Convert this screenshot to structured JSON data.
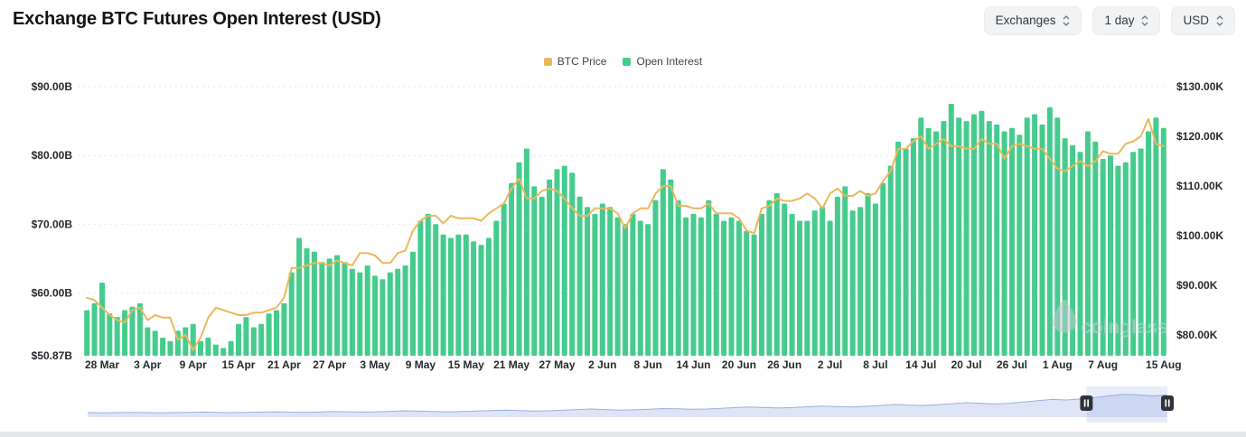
{
  "header": {
    "title": "Exchange BTC Futures Open Interest (USD)",
    "controls": [
      {
        "label": "Exchanges"
      },
      {
        "label": "1 day"
      },
      {
        "label": "USD"
      }
    ]
  },
  "legend": [
    {
      "label": "BTC Price",
      "color": "#eab85c"
    },
    {
      "label": "Open Interest",
      "color": "#45cc8d"
    }
  ],
  "watermark": "coinglass",
  "chart_data": {
    "type": "bar",
    "title": "Exchange BTC Futures Open Interest (USD)",
    "grid": "dotted horizontal",
    "legend_position": "top-center",
    "x": [
      "26 Mar",
      "27 Mar",
      "28 Mar",
      "29 Mar",
      "30 Mar",
      "31 Mar",
      "1 Apr",
      "2 Apr",
      "3 Apr",
      "4 Apr",
      "5 Apr",
      "6 Apr",
      "7 Apr",
      "8 Apr",
      "9 Apr",
      "10 Apr",
      "11 Apr",
      "12 Apr",
      "13 Apr",
      "14 Apr",
      "15 Apr",
      "16 Apr",
      "17 Apr",
      "18 Apr",
      "19 Apr",
      "20 Apr",
      "21 Apr",
      "22 Apr",
      "23 Apr",
      "24 Apr",
      "25 Apr",
      "26 Apr",
      "27 Apr",
      "28 Apr",
      "29 Apr",
      "30 Apr",
      "1 May",
      "2 May",
      "3 May",
      "4 May",
      "5 May",
      "6 May",
      "7 May",
      "8 May",
      "9 May",
      "10 May",
      "11 May",
      "12 May",
      "13 May",
      "14 May",
      "15 May",
      "16 May",
      "17 May",
      "18 May",
      "19 May",
      "20 May",
      "21 May",
      "22 May",
      "23 May",
      "24 May",
      "25 May",
      "26 May",
      "27 May",
      "28 May",
      "29 May",
      "30 May",
      "31 May",
      "1 Jun",
      "2 Jun",
      "3 Jun",
      "4 Jun",
      "5 Jun",
      "6 Jun",
      "7 Jun",
      "8 Jun",
      "9 Jun",
      "10 Jun",
      "11 Jun",
      "12 Jun",
      "13 Jun",
      "14 Jun",
      "15 Jun",
      "16 Jun",
      "17 Jun",
      "18 Jun",
      "19 Jun",
      "20 Jun",
      "21 Jun",
      "22 Jun",
      "23 Jun",
      "24 Jun",
      "25 Jun",
      "26 Jun",
      "27 Jun",
      "28 Jun",
      "29 Jun",
      "30 Jun",
      "1 Jul",
      "2 Jul",
      "3 Jul",
      "4 Jul",
      "5 Jul",
      "6 Jul",
      "7 Jul",
      "8 Jul",
      "9 Jul",
      "10 Jul",
      "11 Jul",
      "12 Jul",
      "13 Jul",
      "14 Jul",
      "15 Jul",
      "16 Jul",
      "17 Jul",
      "18 Jul",
      "19 Jul",
      "20 Jul",
      "21 Jul",
      "22 Jul",
      "23 Jul",
      "24 Jul",
      "25 Jul",
      "26 Jul",
      "27 Jul",
      "28 Jul",
      "29 Jul",
      "30 Jul",
      "31 Jul",
      "1 Aug",
      "2 Aug",
      "3 Aug",
      "4 Aug",
      "5 Aug",
      "6 Aug",
      "7 Aug",
      "8 Aug",
      "9 Aug",
      "10 Aug",
      "11 Aug",
      "12 Aug",
      "13 Aug",
      "14 Aug",
      "15 Aug"
    ],
    "series": [
      {
        "name": "Open Interest",
        "type": "bar",
        "axis": "left",
        "unit": "USD billions",
        "color": "#45cc8d",
        "values": [
          57.5,
          58.5,
          61.5,
          57.0,
          56.5,
          57.5,
          58.0,
          58.5,
          55.0,
          54.5,
          53.5,
          53.0,
          54.5,
          55.0,
          55.5,
          53.0,
          53.5,
          52.5,
          52.0,
          53.0,
          55.5,
          56.5,
          55.0,
          55.5,
          57.0,
          57.5,
          58.5,
          63.0,
          68.0,
          66.5,
          66.0,
          64.5,
          65.0,
          65.5,
          64.5,
          63.5,
          63.0,
          64.0,
          62.5,
          62.0,
          63.0,
          63.5,
          64.0,
          66.0,
          70.5,
          71.5,
          70.0,
          68.5,
          68.0,
          68.5,
          68.5,
          67.5,
          67.0,
          68.0,
          70.5,
          73.0,
          76.0,
          79.0,
          81.0,
          75.5,
          74.0,
          76.5,
          78.0,
          78.5,
          77.5,
          74.0,
          72.5,
          71.5,
          73.0,
          72.5,
          71.0,
          70.0,
          71.5,
          70.5,
          70.0,
          73.5,
          78.0,
          76.5,
          73.5,
          71.0,
          71.5,
          71.0,
          73.5,
          71.5,
          70.5,
          71.0,
          70.5,
          69.0,
          68.5,
          71.5,
          73.5,
          74.5,
          73.0,
          71.5,
          70.5,
          70.5,
          72.0,
          72.5,
          70.5,
          74.0,
          75.5,
          72.0,
          72.5,
          74.5,
          73.0,
          76.0,
          78.5,
          82.0,
          81.0,
          82.5,
          85.5,
          84.0,
          83.5,
          85.0,
          87.5,
          85.5,
          85.0,
          86.0,
          86.5,
          85.0,
          84.5,
          83.5,
          84.0,
          83.0,
          85.5,
          86.0,
          84.5,
          87.0,
          85.5,
          82.5,
          81.5,
          80.5,
          83.5,
          82.0,
          79.5,
          80.0,
          78.5,
          79.0,
          80.5,
          81.0,
          83.5,
          85.5,
          84.0
        ]
      },
      {
        "name": "BTC Price",
        "type": "line",
        "axis": "right",
        "unit": "USD thousands",
        "color": "#eab85c",
        "values": [
          87.5,
          87.0,
          85.5,
          84.0,
          83.0,
          82.5,
          85.0,
          85.5,
          83.0,
          84.0,
          83.5,
          83.5,
          79.0,
          80.0,
          77.0,
          79.5,
          83.5,
          85.5,
          85.0,
          84.5,
          84.0,
          84.0,
          84.5,
          84.5,
          85.0,
          85.5,
          87.5,
          93.5,
          93.5,
          94.0,
          94.5,
          94.5,
          94.0,
          95.0,
          94.5,
          94.0,
          96.5,
          96.5,
          96.0,
          94.5,
          94.5,
          96.5,
          97.0,
          101.0,
          103.0,
          104.0,
          104.0,
          102.5,
          104.0,
          103.5,
          103.5,
          103.5,
          103.0,
          104.5,
          105.5,
          106.5,
          109.5,
          111.5,
          107.5,
          107.5,
          109.0,
          109.5,
          109.0,
          107.5,
          105.5,
          104.0,
          104.0,
          105.5,
          105.5,
          105.5,
          104.5,
          101.5,
          104.5,
          105.5,
          105.5,
          108.5,
          110.0,
          110.0,
          106.0,
          106.0,
          105.5,
          105.5,
          106.5,
          104.5,
          104.5,
          104.5,
          103.5,
          101.0,
          100.5,
          105.5,
          106.0,
          107.5,
          107.0,
          107.0,
          107.5,
          108.5,
          107.5,
          105.5,
          108.5,
          109.5,
          108.0,
          108.0,
          109.0,
          108.0,
          108.5,
          111.0,
          113.0,
          117.5,
          117.5,
          119.0,
          120.0,
          117.5,
          118.5,
          119.5,
          118.0,
          118.0,
          117.5,
          117.5,
          119.5,
          118.5,
          118.5,
          115.5,
          118.0,
          118.5,
          118.0,
          117.5,
          117.5,
          115.5,
          113.5,
          113.0,
          114.0,
          115.0,
          114.0,
          115.0,
          117.0,
          116.5,
          116.5,
          118.5,
          119.0,
          120.0,
          123.5,
          118.5,
          118.0
        ]
      }
    ],
    "left_axis": {
      "ticks": [
        "$90.00B",
        "$80.00B",
        "$70.00B",
        "$60.00B",
        "$50.87B"
      ],
      "tick_values": [
        90,
        80,
        70,
        60,
        50.87
      ],
      "min": 50.87
    },
    "right_axis": {
      "ticks": [
        "$130.00K",
        "$120.00K",
        "$110.00K",
        "$100.00K",
        "$90.00K",
        "$80.00K"
      ],
      "tick_values": [
        130,
        120,
        110,
        100,
        90,
        80
      ]
    },
    "x_ticks": [
      {
        "index": 2,
        "label": "28 Mar"
      },
      {
        "index": 8,
        "label": "3 Apr"
      },
      {
        "index": 14,
        "label": "9 Apr"
      },
      {
        "index": 20,
        "label": "15 Apr"
      },
      {
        "index": 26,
        "label": "21 Apr"
      },
      {
        "index": 32,
        "label": "27 Apr"
      },
      {
        "index": 38,
        "label": "3 May"
      },
      {
        "index": 44,
        "label": "9 May"
      },
      {
        "index": 50,
        "label": "15 May"
      },
      {
        "index": 56,
        "label": "21 May"
      },
      {
        "index": 62,
        "label": "27 May"
      },
      {
        "index": 68,
        "label": "2 Jun"
      },
      {
        "index": 74,
        "label": "8 Jun"
      },
      {
        "index": 80,
        "label": "14 Jun"
      },
      {
        "index": 86,
        "label": "20 Jun"
      },
      {
        "index": 92,
        "label": "26 Jun"
      },
      {
        "index": 98,
        "label": "2 Jul"
      },
      {
        "index": 104,
        "label": "8 Jul"
      },
      {
        "index": 110,
        "label": "14 Jul"
      },
      {
        "index": 116,
        "label": "20 Jul"
      },
      {
        "index": 122,
        "label": "26 Jul"
      },
      {
        "index": 128,
        "label": "1 Aug"
      },
      {
        "index": 134,
        "label": "7 Aug"
      },
      {
        "index": 142,
        "label": "15 Aug"
      }
    ]
  },
  "navigator": {
    "values": [
      18,
      17,
      18,
      19,
      18,
      17,
      18,
      19,
      20,
      19,
      18,
      19,
      20,
      21,
      20,
      19,
      20,
      22,
      21,
      20,
      21,
      23,
      25,
      24,
      22,
      21,
      22,
      24,
      26,
      28,
      26,
      24,
      25,
      27,
      30,
      32,
      30,
      28,
      29,
      31,
      34,
      33,
      31,
      32,
      35,
      38,
      40,
      38,
      36,
      38,
      41,
      44,
      42,
      40,
      43,
      46,
      50,
      48,
      46,
      49,
      53,
      57,
      55,
      52,
      55,
      60,
      65,
      70,
      68,
      72,
      78,
      85,
      90,
      88,
      84,
      88
    ],
    "selection_start": 0.925,
    "selection_end": 1.0
  }
}
